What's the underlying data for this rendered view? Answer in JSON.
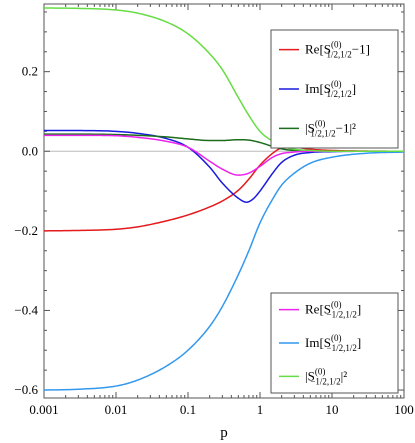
{
  "chart_data": {
    "type": "line",
    "xlabel": "p",
    "ylabel": "",
    "xscale": "log",
    "xlim": [
      0.001,
      100
    ],
    "ylim": [
      -0.62,
      0.37
    ],
    "xticks": [
      {
        "value": 0.001,
        "label": "0.001"
      },
      {
        "value": 0.01,
        "label": "0.01"
      },
      {
        "value": 0.1,
        "label": "0.1"
      },
      {
        "value": 1,
        "label": "1"
      },
      {
        "value": 10,
        "label": "10"
      },
      {
        "value": 100,
        "label": "100"
      }
    ],
    "yticks": [
      {
        "value": 0.2,
        "label": "0.2"
      },
      {
        "value": 0.0,
        "label": "0.0"
      },
      {
        "value": -0.2,
        "label": "−0.2"
      },
      {
        "value": -0.4,
        "label": "−0.4"
      },
      {
        "value": -0.6,
        "label": "−0.6"
      }
    ],
    "grid": false,
    "zero_line": true,
    "legends": [
      {
        "placement": "top-right",
        "entries": [
          {
            "series": 0,
            "prefix": "Re[S",
            "sup": "(0)",
            "sub": "1/2,1/2",
            "suffix": "−1]"
          },
          {
            "series": 1,
            "prefix": "Im[S",
            "sup": "(0)",
            "sub": "1/2,1/2",
            "suffix": "]"
          },
          {
            "series": 2,
            "prefix": "|S",
            "sup": "(0)",
            "sub": "1/2,1/2",
            "suffix": "−1|²"
          }
        ]
      },
      {
        "placement": "bottom-right",
        "entries": [
          {
            "series": 3,
            "prefix": "Re[S",
            "sup": "(0)",
            "sub": "−1/2,1/2",
            "suffix": "]"
          },
          {
            "series": 4,
            "prefix": "Im[S",
            "sup": "(0)",
            "sub": "−1/2,1/2",
            "suffix": "]"
          },
          {
            "series": 5,
            "prefix": "|S",
            "sup": "(0)",
            "sub": "−1/2,1/2",
            "suffix": "|²"
          }
        ]
      }
    ],
    "series": [
      {
        "color": "#e41a1c",
        "x": [
          0.001,
          0.003,
          0.01,
          0.02,
          0.05,
          0.1,
          0.2,
          0.3,
          0.5,
          0.7,
          1.0,
          1.5,
          2.0,
          3.0,
          5.0,
          10,
          30,
          100
        ],
        "y": [
          -0.2,
          -0.199,
          -0.196,
          -0.19,
          -0.175,
          -0.16,
          -0.14,
          -0.125,
          -0.098,
          -0.07,
          -0.035,
          -0.005,
          0.008,
          0.01,
          0.005,
          0.002,
          0.0005,
          0.0
        ]
      },
      {
        "color": "#1a1add",
        "x": [
          0.001,
          0.003,
          0.01,
          0.02,
          0.05,
          0.1,
          0.2,
          0.3,
          0.5,
          0.65,
          0.8,
          1.0,
          1.5,
          2.0,
          3.0,
          5.0,
          10,
          30,
          100
        ],
        "y": [
          0.052,
          0.052,
          0.05,
          0.045,
          0.032,
          0.01,
          -0.04,
          -0.08,
          -0.118,
          -0.128,
          -0.12,
          -0.1,
          -0.055,
          -0.028,
          -0.01,
          -0.003,
          -0.001,
          0.0,
          0.0
        ]
      },
      {
        "color": "#1c6e1c",
        "x": [
          0.001,
          0.003,
          0.01,
          0.02,
          0.05,
          0.1,
          0.2,
          0.3,
          0.5,
          0.7,
          1.0,
          1.5,
          2.0,
          3.0,
          5.0,
          10,
          30,
          100
        ],
        "y": [
          0.043,
          0.043,
          0.042,
          0.04,
          0.036,
          0.031,
          0.027,
          0.027,
          0.029,
          0.028,
          0.022,
          0.012,
          0.006,
          0.002,
          0.001,
          0.0,
          0.0,
          0.0
        ]
      },
      {
        "color": "#ee22ee",
        "x": [
          0.001,
          0.003,
          0.01,
          0.02,
          0.05,
          0.1,
          0.2,
          0.3,
          0.5,
          0.7,
          1.0,
          1.5,
          2.0,
          3.0,
          5.0,
          10,
          30,
          100
        ],
        "y": [
          0.04,
          0.04,
          0.039,
          0.035,
          0.025,
          0.01,
          -0.025,
          -0.045,
          -0.06,
          -0.055,
          -0.038,
          -0.015,
          -0.006,
          -0.002,
          0.0,
          0.0,
          0.0,
          0.0
        ]
      },
      {
        "color": "#3399ee",
        "x": [
          0.001,
          0.003,
          0.01,
          0.02,
          0.05,
          0.1,
          0.2,
          0.3,
          0.5,
          0.7,
          1.0,
          1.5,
          2.0,
          3.0,
          5.0,
          10,
          30,
          100
        ],
        "y": [
          -0.6,
          -0.598,
          -0.59,
          -0.575,
          -0.54,
          -0.5,
          -0.44,
          -0.39,
          -0.31,
          -0.25,
          -0.18,
          -0.12,
          -0.085,
          -0.055,
          -0.03,
          -0.015,
          -0.005,
          -0.002
        ]
      },
      {
        "color": "#66dd44",
        "x": [
          0.001,
          0.003,
          0.01,
          0.02,
          0.05,
          0.1,
          0.2,
          0.3,
          0.5,
          0.7,
          1.0,
          1.5,
          2.0,
          3.0,
          5.0,
          10,
          30,
          100
        ],
        "y": [
          0.36,
          0.359,
          0.355,
          0.347,
          0.325,
          0.295,
          0.245,
          0.205,
          0.135,
          0.09,
          0.05,
          0.025,
          0.013,
          0.005,
          0.002,
          0.0,
          0.0,
          0.0
        ]
      }
    ]
  }
}
